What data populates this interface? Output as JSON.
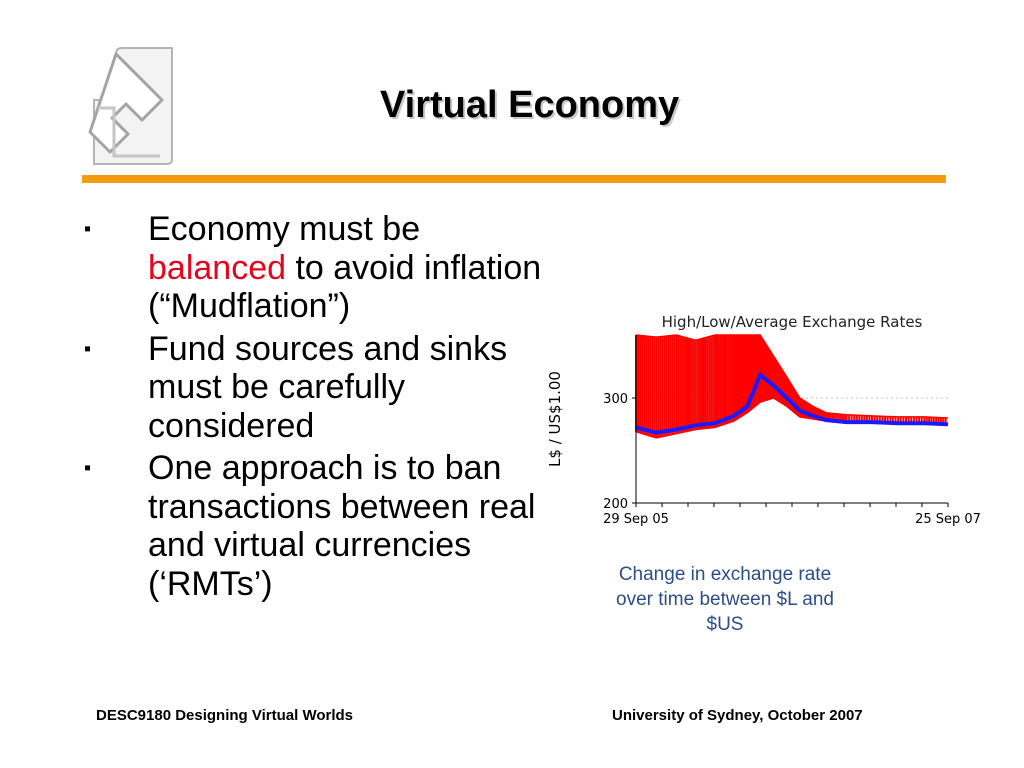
{
  "slide": {
    "title": "Virtual Economy",
    "accent_color": "#f49c10",
    "bullet_marker": "▪",
    "bullets": [
      {
        "before": "Economy must be ",
        "highlight": "balanced",
        "after": " to avoid inflation (“Mudflation”)"
      },
      {
        "text": "Fund sources and sinks must be carefully considered"
      },
      {
        "text": "One approach is to ban transactions between real and virtual currencies (‘RMTs’)"
      }
    ],
    "highlight_color": "#e3051b",
    "caption": "Change in exchange rate over time between $L and $US",
    "footer_left": "DESC9180 Designing Virtual Worlds",
    "footer_right": "University of Sydney, October 2007",
    "logo_icon": "university-arrow-logo-icon"
  },
  "chart_data": {
    "type": "line",
    "title": "High/Low/Average Exchange Rates",
    "ylabel": "L$ / US$1.00",
    "xlabel": "",
    "x_ticks": [
      "29 Sep 05",
      "25 Sep 07"
    ],
    "y_ticks": [
      200,
      300
    ],
    "ylim": [
      200,
      360
    ],
    "reference_line": 300,
    "x": [
      "2005-09-29",
      "2005-11-15",
      "2006-01-01",
      "2006-02-15",
      "2006-04-01",
      "2006-05-15",
      "2006-06-15",
      "2006-07-15",
      "2006-08-15",
      "2006-09-15",
      "2006-10-15",
      "2006-11-15",
      "2006-12-15",
      "2007-02-01",
      "2007-04-01",
      "2007-06-01",
      "2007-08-01",
      "2007-09-25"
    ],
    "series": [
      {
        "name": "High",
        "color": "#ff0000",
        "values": [
          360,
          358,
          360,
          355,
          360,
          360,
          360,
          360,
          340,
          320,
          300,
          292,
          286,
          284,
          283,
          282,
          282,
          281
        ]
      },
      {
        "name": "Low",
        "color": "#ff0000",
        "values": [
          268,
          262,
          266,
          270,
          272,
          278,
          286,
          296,
          300,
          292,
          282,
          280,
          278,
          276,
          276,
          275,
          275,
          274
        ]
      },
      {
        "name": "Average",
        "color": "#1a1aff",
        "values": [
          272,
          267,
          270,
          274,
          276,
          283,
          292,
          322,
          312,
          300,
          288,
          283,
          279,
          277,
          277,
          276,
          276,
          275
        ]
      }
    ]
  }
}
